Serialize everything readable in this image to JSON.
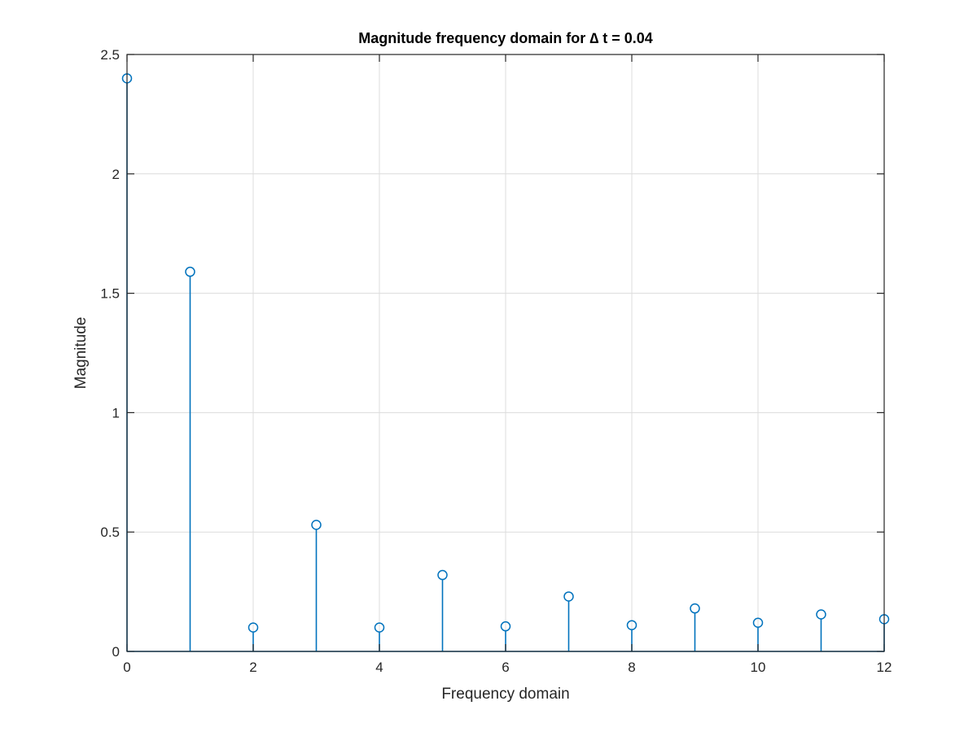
{
  "chart_data": {
    "type": "stem",
    "title": "Magnitude frequency domain for ∆ t = 0.04",
    "xlabel": "Frequency domain",
    "ylabel": "Magnitude",
    "xlim": [
      0,
      12
    ],
    "ylim": [
      0,
      2.5
    ],
    "xticks": [
      0,
      2,
      4,
      6,
      8,
      10,
      12
    ],
    "yticks": [
      0,
      0.5,
      1,
      1.5,
      2,
      2.5
    ],
    "xtick_labels": [
      "0",
      "2",
      "4",
      "6",
      "8",
      "10",
      "12"
    ],
    "ytick_labels": [
      "0",
      "0.5",
      "1",
      "1.5",
      "2",
      "2.5"
    ],
    "grid": true,
    "series_color": "#0072BD",
    "x": [
      0,
      1,
      2,
      3,
      4,
      5,
      6,
      7,
      8,
      9,
      10,
      11,
      12
    ],
    "y": [
      2.4,
      1.59,
      0.1,
      0.53,
      0.1,
      0.32,
      0.105,
      0.23,
      0.11,
      0.18,
      0.12,
      0.155,
      0.135
    ]
  }
}
